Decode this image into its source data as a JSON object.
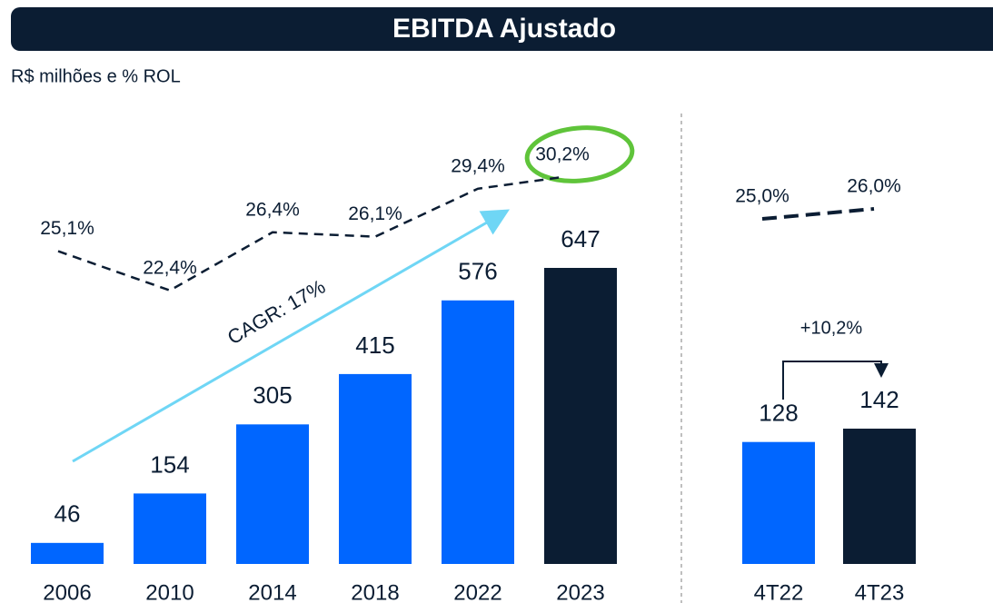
{
  "title": "EBITDA Ajustado",
  "subtitle": "R$ milhões e % ROL",
  "chart_data": [
    {
      "type": "bar",
      "categories": [
        "2006",
        "2010",
        "2014",
        "2018",
        "2022",
        "2023"
      ],
      "values": [
        46,
        154,
        305,
        415,
        576,
        647
      ],
      "colors": [
        "#0066ff",
        "#0066ff",
        "#0066ff",
        "#0066ff",
        "#0066ff",
        "#0b1d33"
      ],
      "margin": {
        "values": [
          25.1,
          22.4,
          26.4,
          26.1,
          29.4,
          30.2
        ],
        "value_labels": [
          "25,1%",
          "22,4%",
          "26,4%",
          "26,1%",
          "29,4%",
          "30,2%"
        ],
        "color": "#0b1d33"
      },
      "annotations": [
        "CAGR: 17%"
      ]
    },
    {
      "type": "bar",
      "categories": [
        "4T22",
        "4T23"
      ],
      "values": [
        128,
        142
      ],
      "colors": [
        "#0066ff",
        "#0b1d33"
      ],
      "margin": {
        "values": [
          25.0,
          26.0
        ],
        "value_labels": [
          "25,0%",
          "26,0%"
        ],
        "color": "#0b1d33"
      },
      "annotations": [
        "+10,2%"
      ]
    }
  ]
}
